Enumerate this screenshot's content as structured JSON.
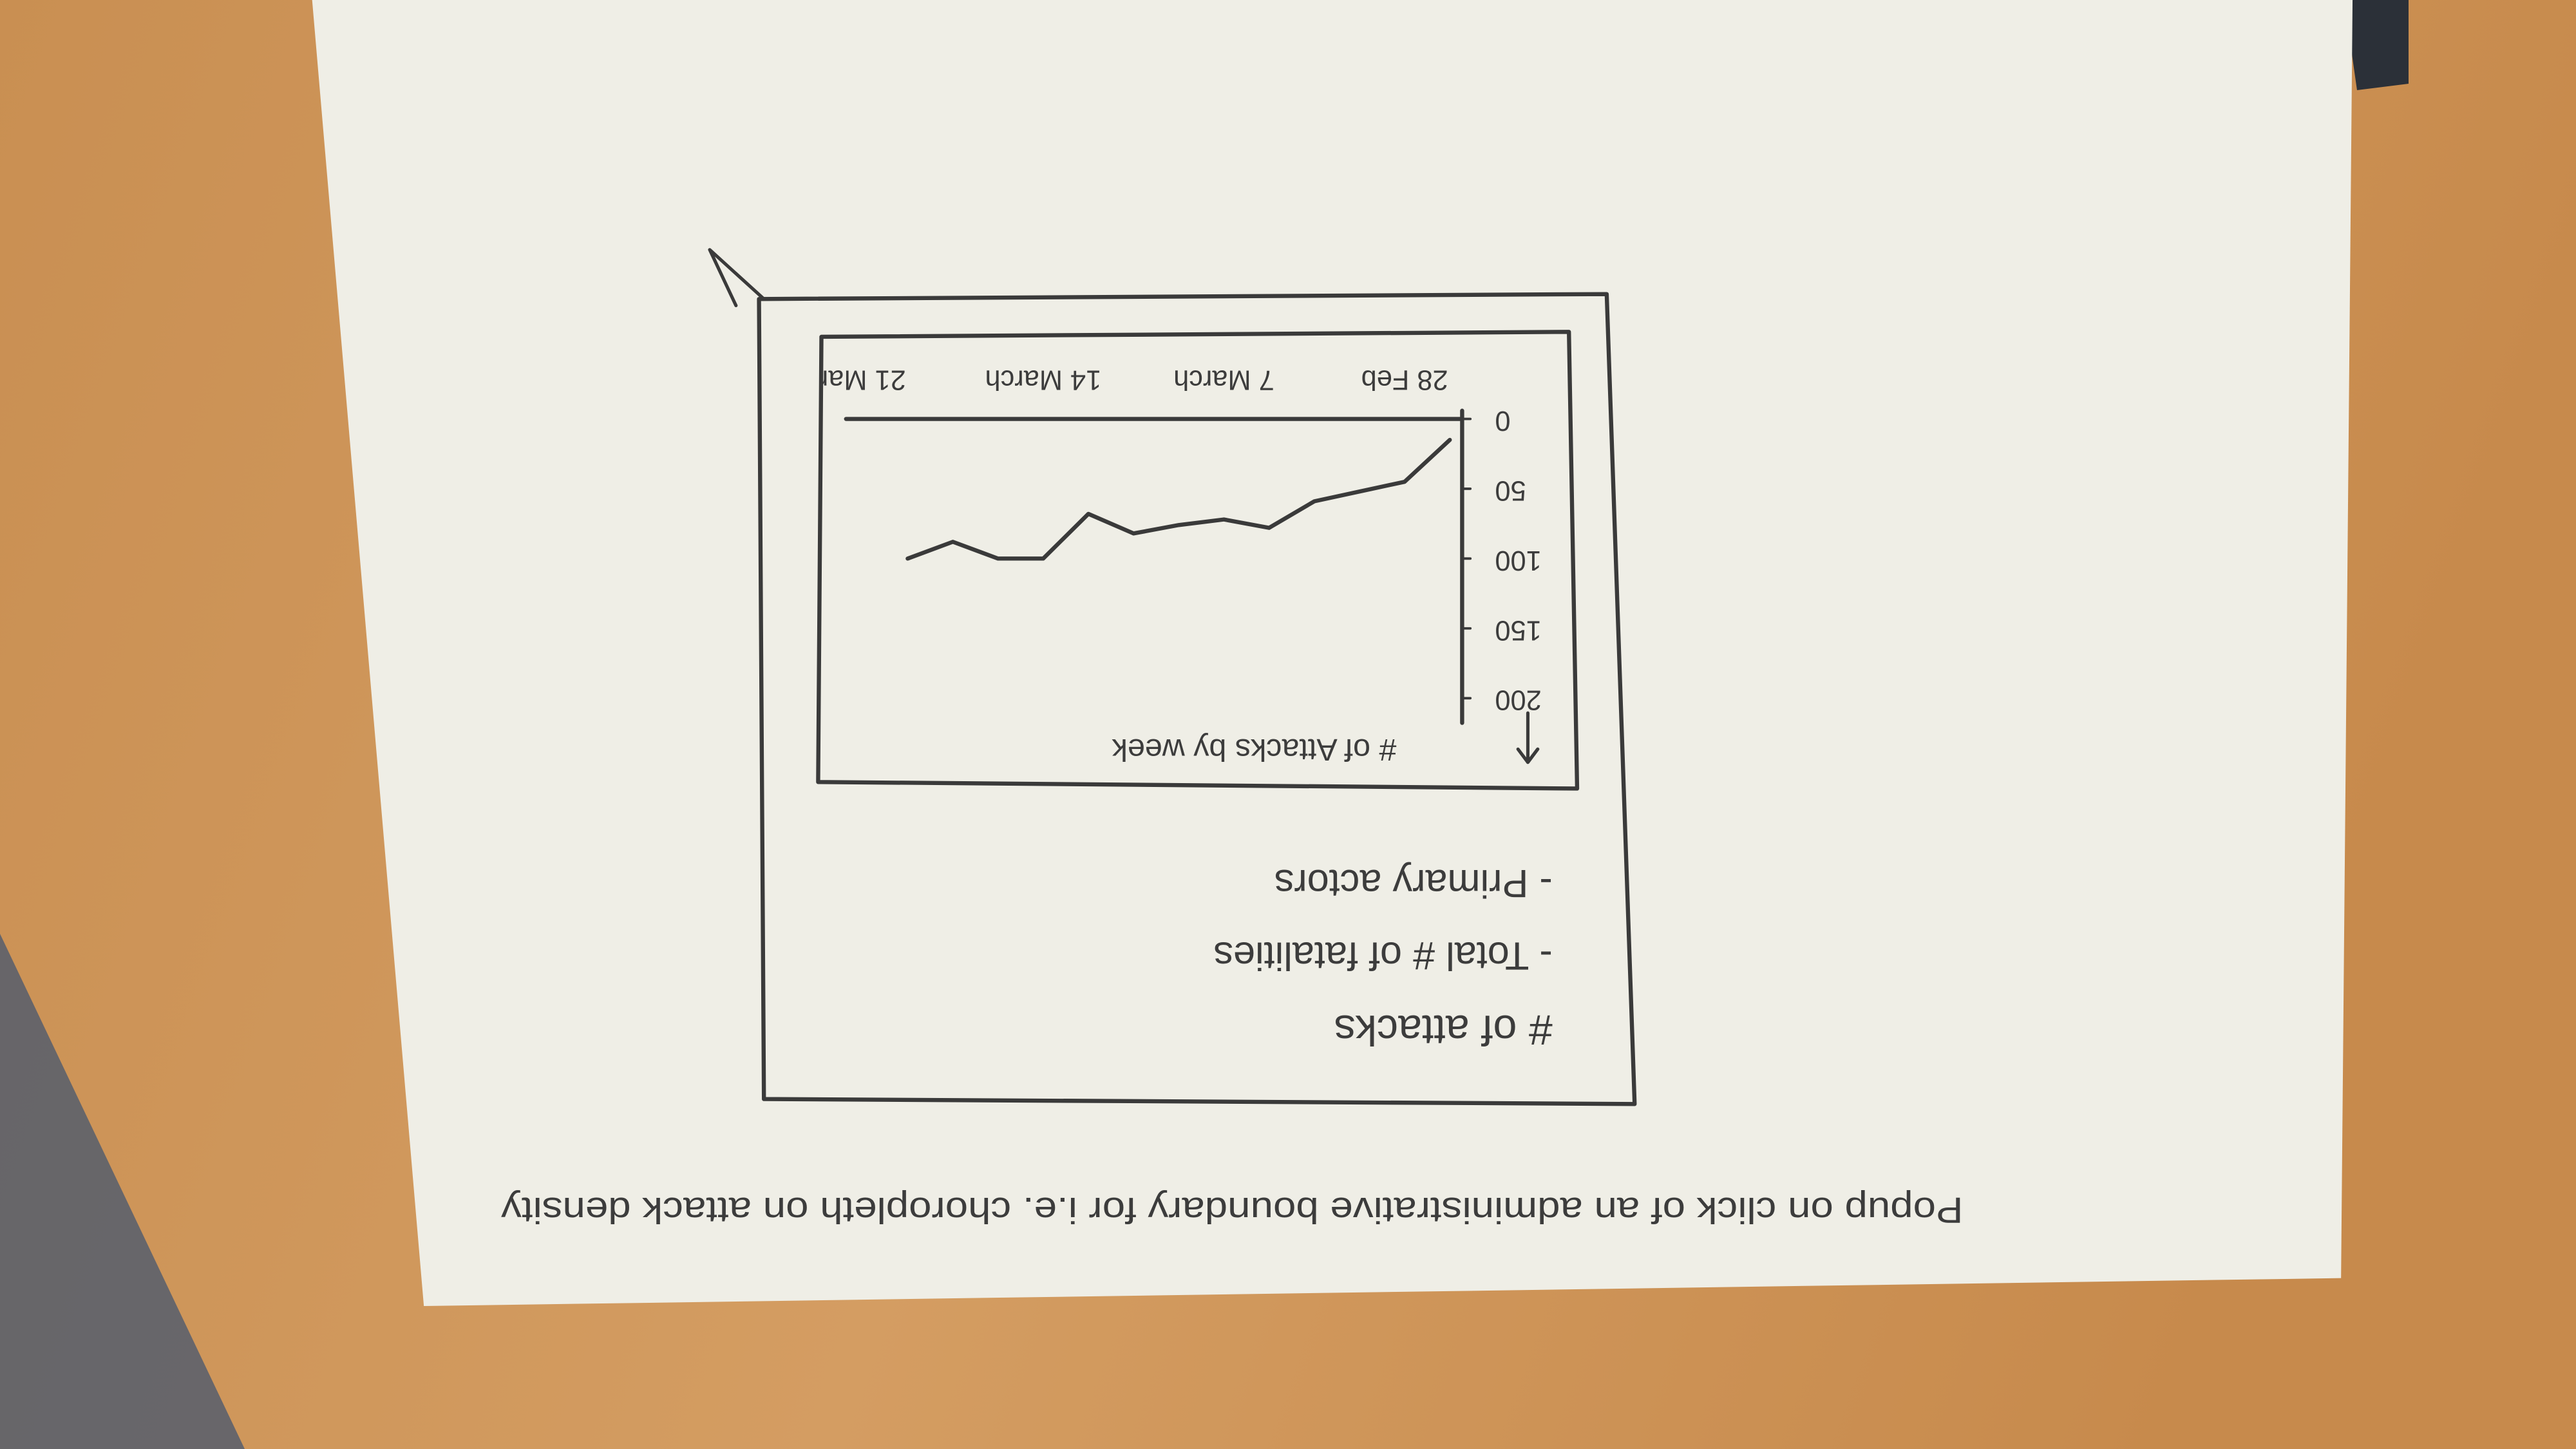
{
  "caption": "Popup on click of an administrative boundary for i.e. choropleth on attack density",
  "popup": {
    "items": [
      "# of attacks",
      "- Total # of fatalities",
      "- Primary actors"
    ]
  },
  "chart_data": {
    "type": "line",
    "title": "# of Attacks by week",
    "categories": [
      null,
      "28 Feb",
      null,
      null,
      null,
      "7 March",
      null,
      null,
      null,
      "14 March",
      null,
      null,
      null,
      "21 Mar"
    ],
    "values": [
      15,
      45,
      52,
      59,
      78,
      72,
      76,
      82,
      68,
      100,
      100,
      88,
      100,
      null
    ],
    "color": "#3a3a3a",
    "ylim": [
      0,
      200
    ],
    "yticks": [
      0,
      50,
      100,
      150,
      200
    ],
    "grid": false
  }
}
